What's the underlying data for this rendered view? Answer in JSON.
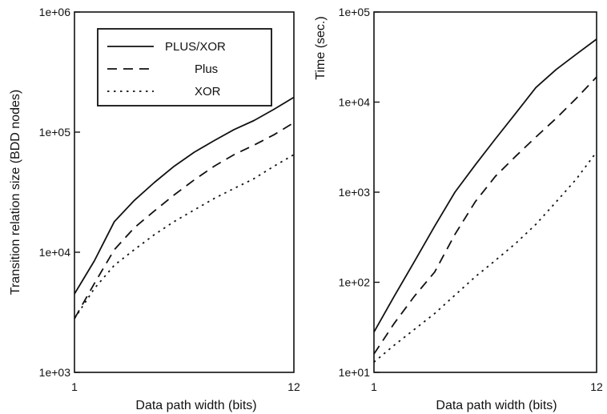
{
  "chart_data": [
    {
      "type": "line",
      "title": "",
      "xlabel": "Data path width (bits)",
      "ylabel": "Transition relation size (BDD nodes)",
      "xlim": [
        1,
        12
      ],
      "ylim": [
        1000,
        1000000
      ],
      "yscale": "log",
      "xticks": [
        "1",
        "12"
      ],
      "yticks": [
        "1e+03",
        "1e+04",
        "1e+05",
        "1e+06"
      ],
      "grid": false,
      "legend": {
        "placement": "top-left",
        "entries": [
          "PLUS/XOR",
          "Plus",
          "XOR"
        ]
      },
      "x": [
        1,
        2,
        3,
        4,
        5,
        6,
        7,
        8,
        9,
        10,
        11,
        12
      ],
      "series": [
        {
          "name": "PLUS/XOR",
          "style": "solid",
          "values": [
            4500,
            8500,
            18000,
            27000,
            38000,
            52000,
            68000,
            85000,
            105000,
            125000,
            155000,
            195000
          ]
        },
        {
          "name": "Plus",
          "style": "dashed",
          "values": [
            2800,
            5500,
            10500,
            16000,
            22000,
            30000,
            40000,
            52000,
            65000,
            78000,
            95000,
            120000
          ]
        },
        {
          "name": "XOR",
          "style": "dotted",
          "values": [
            2800,
            5000,
            7800,
            10500,
            14000,
            18000,
            22500,
            28000,
            34000,
            41000,
            52000,
            65000
          ]
        }
      ]
    },
    {
      "type": "line",
      "title": "",
      "xlabel": "Data path width (bits)",
      "ylabel": "Time (sec.)",
      "xlim": [
        1,
        12
      ],
      "ylim": [
        10,
        100000
      ],
      "yscale": "log",
      "xticks": [
        "1",
        "12"
      ],
      "yticks": [
        "1e+01",
        "1e+02",
        "1e+03",
        "1e+04",
        "1e+05"
      ],
      "grid": false,
      "x": [
        1,
        2,
        3,
        4,
        5,
        6,
        7,
        8,
        9,
        10,
        11,
        12
      ],
      "series": [
        {
          "name": "PLUS/XOR",
          "style": "solid",
          "values": [
            28,
            70,
            170,
            420,
            1000,
            2000,
            3900,
            7500,
            14500,
            23000,
            34000,
            50000
          ]
        },
        {
          "name": "Plus",
          "style": "dashed",
          "values": [
            16,
            35,
            70,
            130,
            340,
            780,
            1500,
            2500,
            4100,
            6600,
            11000,
            19000
          ]
        },
        {
          "name": "XOR",
          "style": "dotted",
          "values": [
            13,
            20,
            30,
            45,
            72,
            115,
            175,
            270,
            440,
            780,
            1400,
            2800
          ]
        }
      ]
    }
  ]
}
